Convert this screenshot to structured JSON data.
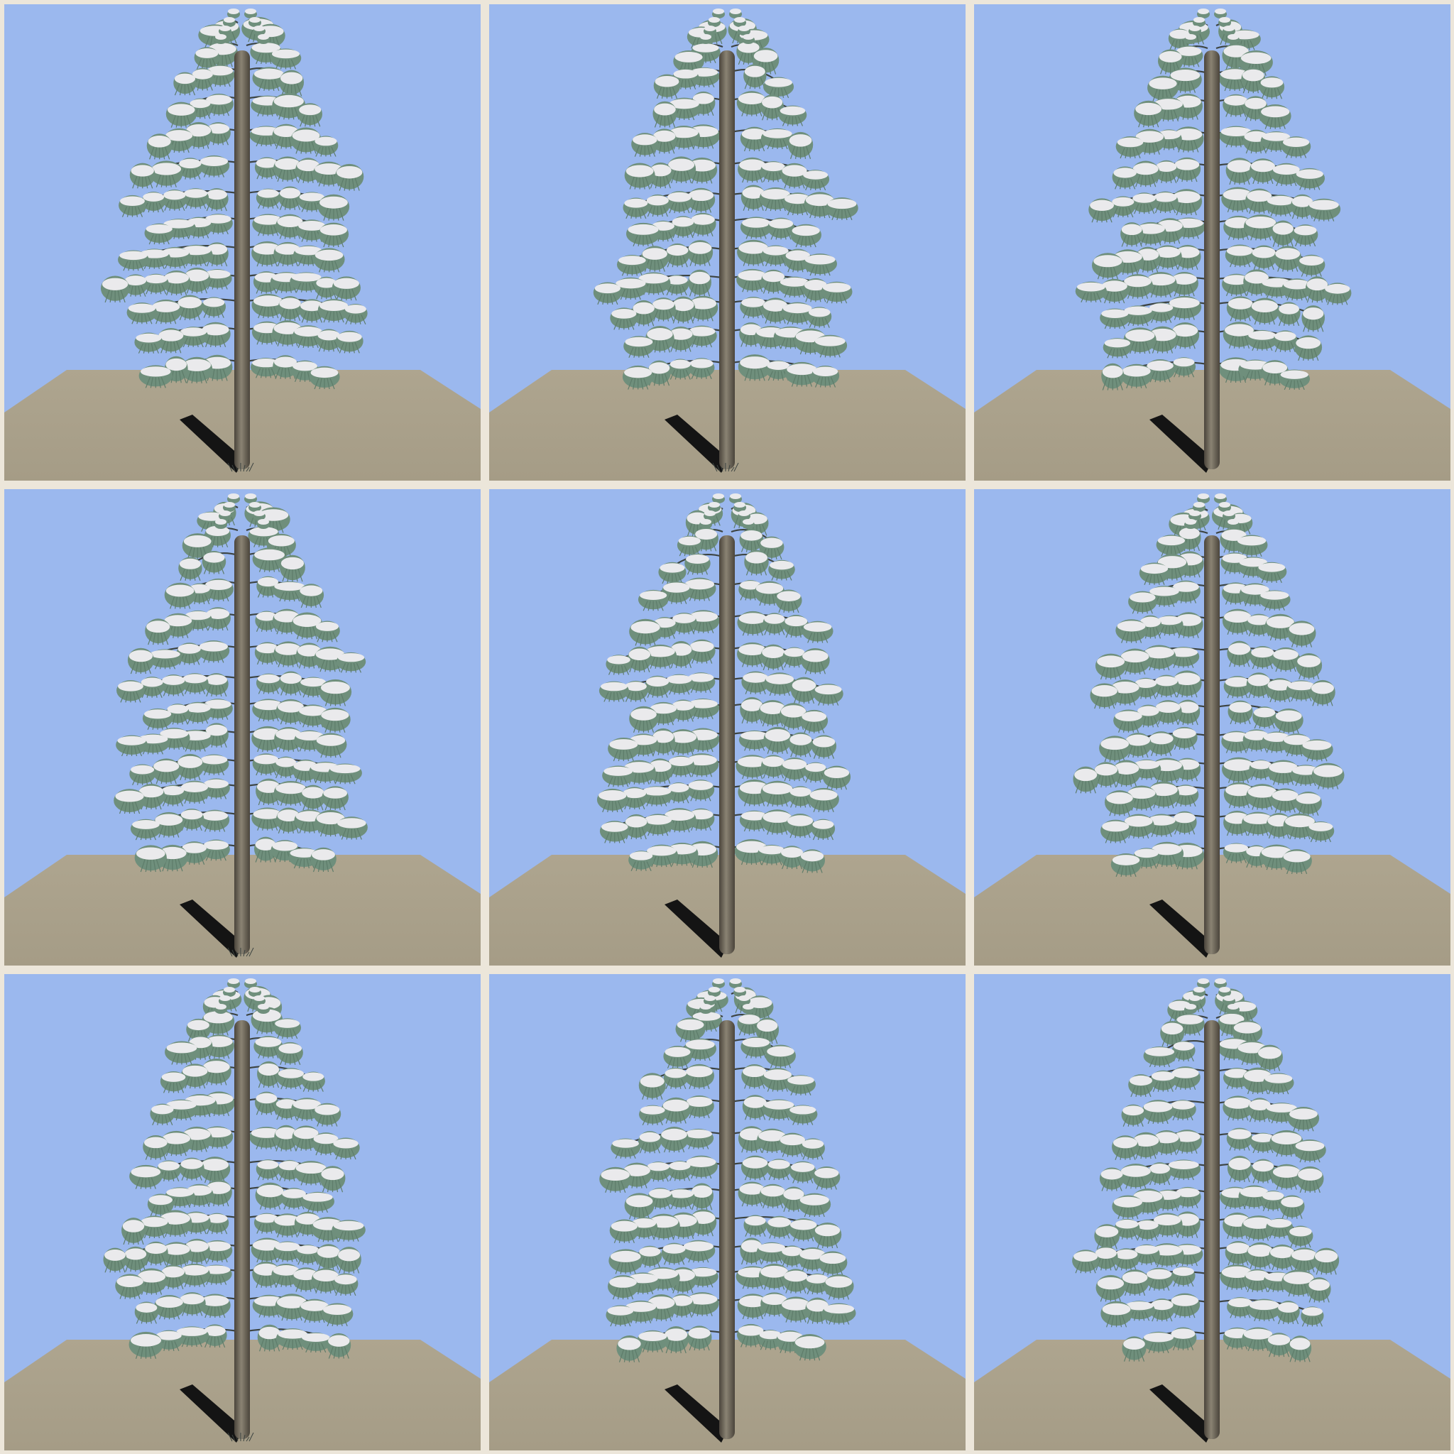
{
  "sheet": {
    "background": "#ece6da",
    "sky_color": "#9bb8ee",
    "ground_top_color": "#aea58f",
    "ground_bottom_color": "#a59c86",
    "needle_color": "#6f8f7c",
    "needle_dark_color": "#5e7c6a",
    "snow_color": "#eaeaec",
    "branch_color": "#3c4340",
    "trunk_colors": [
      "#4a443b",
      "#8a8373",
      "#4a443b"
    ],
    "shadow_color": "#141414"
  },
  "tiles": [
    {
      "variant": "A",
      "shadow": true,
      "base_debris": true,
      "sway": 0
    },
    {
      "variant": "B",
      "shadow": true,
      "base_debris": true,
      "sway": 1
    },
    {
      "variant": "C",
      "shadow": true,
      "base_debris": false,
      "sway": 2
    },
    {
      "variant": "D",
      "shadow": true,
      "base_debris": true,
      "sway": 3
    },
    {
      "variant": "E",
      "shadow": true,
      "base_debris": false,
      "sway": 4
    },
    {
      "variant": "F",
      "shadow": true,
      "base_debris": false,
      "sway": 5
    },
    {
      "variant": "G",
      "shadow": true,
      "base_debris": true,
      "sway": 6
    },
    {
      "variant": "H",
      "shadow": true,
      "base_debris": false,
      "sway": 7
    },
    {
      "variant": "I",
      "shadow": true,
      "base_debris": false,
      "sway": 8
    }
  ]
}
